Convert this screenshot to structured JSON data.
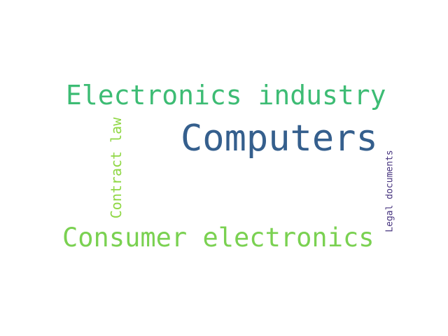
{
  "words": [
    {
      "text": "Computers",
      "color": "#355f8d"
    },
    {
      "text": "Electronics industry",
      "color": "#3dbc74"
    },
    {
      "text": "Consumer electronics",
      "color": "#7ad151"
    },
    {
      "text": "Contract law",
      "color": "#8fd744"
    },
    {
      "text": "Legal documents",
      "color": "#46337e"
    }
  ]
}
